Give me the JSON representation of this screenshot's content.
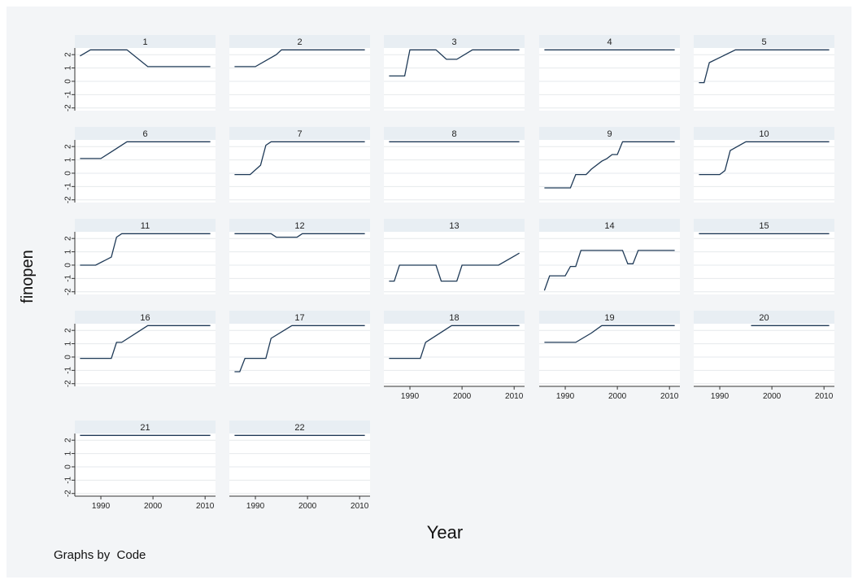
{
  "chart_data": {
    "type": "line",
    "layout": "small-multiples",
    "xlabel": "Year",
    "ylabel": "finopen",
    "note": "Graphs by  Code",
    "xlim": [
      1985,
      2012
    ],
    "ylim": [
      -2.2,
      2.5
    ],
    "xticks": [
      1990,
      2000,
      2010
    ],
    "yticks": [
      -2,
      -1,
      0,
      1,
      2
    ],
    "grid": true,
    "colors": {
      "line": "#1f3a57",
      "header": "#e8eef3",
      "outer_bg": "#f3f5f7",
      "grid": "#e6e9ec"
    },
    "panels": [
      {
        "label": "1",
        "x": [
          1986,
          1988,
          1995,
          1999,
          2011
        ],
        "y": [
          1.9,
          2.36,
          2.36,
          1.1,
          1.1
        ]
      },
      {
        "label": "2",
        "x": [
          1986,
          1990,
          1994,
          1995,
          2011
        ],
        "y": [
          1.1,
          1.1,
          2.0,
          2.36,
          2.36
        ]
      },
      {
        "label": "3",
        "x": [
          1986,
          1989,
          1990,
          1995,
          1997,
          1999,
          2002,
          2011
        ],
        "y": [
          0.4,
          0.4,
          2.36,
          2.36,
          1.65,
          1.65,
          2.36,
          2.36
        ]
      },
      {
        "label": "4",
        "x": [
          1986,
          2011
        ],
        "y": [
          2.36,
          2.36
        ]
      },
      {
        "label": "5",
        "x": [
          1986,
          1987,
          1988,
          1993,
          2011
        ],
        "y": [
          -0.1,
          -0.1,
          1.4,
          2.36,
          2.36
        ]
      },
      {
        "label": "6",
        "x": [
          1986,
          1990,
          1992,
          1995,
          2011
        ],
        "y": [
          1.1,
          1.1,
          1.6,
          2.36,
          2.36
        ]
      },
      {
        "label": "7",
        "x": [
          1986,
          1989,
          1991,
          1992,
          1993,
          2011
        ],
        "y": [
          -0.1,
          -0.1,
          0.6,
          2.1,
          2.36,
          2.36
        ]
      },
      {
        "label": "8",
        "x": [
          1986,
          2011
        ],
        "y": [
          2.36,
          2.36
        ]
      },
      {
        "label": "9",
        "x": [
          1986,
          1991,
          1992,
          1994,
          1995,
          1997,
          1998,
          1999,
          2000,
          2001,
          2011
        ],
        "y": [
          -1.1,
          -1.1,
          -0.1,
          -0.1,
          0.3,
          0.9,
          1.1,
          1.4,
          1.4,
          2.36,
          2.36
        ]
      },
      {
        "label": "10",
        "x": [
          1986,
          1990,
          1991,
          1992,
          1995,
          2011
        ],
        "y": [
          -0.1,
          -0.1,
          0.2,
          1.7,
          2.36,
          2.36
        ]
      },
      {
        "label": "11",
        "x": [
          1986,
          1989,
          1992,
          1993,
          1994,
          2011
        ],
        "y": [
          0,
          0,
          0.6,
          2.1,
          2.36,
          2.36
        ]
      },
      {
        "label": "12",
        "x": [
          1986,
          1993,
          1994,
          1998,
          1999,
          2011
        ],
        "y": [
          2.36,
          2.36,
          2.1,
          2.1,
          2.36,
          2.36
        ]
      },
      {
        "label": "13",
        "x": [
          1986,
          1987,
          1988,
          1995,
          1996,
          1999,
          2000,
          2007,
          2011
        ],
        "y": [
          -1.2,
          -1.2,
          0,
          0,
          -1.2,
          -1.2,
          0,
          0,
          0.9
        ]
      },
      {
        "label": "14",
        "x": [
          1986,
          1987,
          1988,
          1990,
          1991,
          1992,
          1993,
          2001,
          2002,
          2003,
          2004,
          2011
        ],
        "y": [
          -1.9,
          -0.8,
          -0.8,
          -0.8,
          -0.1,
          -0.1,
          1.1,
          1.1,
          0.1,
          0.1,
          1.1,
          1.1
        ]
      },
      {
        "label": "15",
        "x": [
          1986,
          2011
        ],
        "y": [
          2.36,
          2.36
        ]
      },
      {
        "label": "16",
        "x": [
          1986,
          1992,
          1993,
          1994,
          1999,
          2011
        ],
        "y": [
          -0.1,
          -0.1,
          1.1,
          1.1,
          2.36,
          2.36
        ]
      },
      {
        "label": "17",
        "x": [
          1986,
          1987,
          1988,
          1992,
          1993,
          1997,
          2011
        ],
        "y": [
          -1.1,
          -1.1,
          -0.1,
          -0.1,
          1.4,
          2.36,
          2.36
        ]
      },
      {
        "label": "18",
        "x": [
          1986,
          1992,
          1993,
          1998,
          2011
        ],
        "y": [
          -0.1,
          -0.1,
          1.1,
          2.36,
          2.36
        ]
      },
      {
        "label": "19",
        "x": [
          1986,
          1992,
          1995,
          1997,
          2011
        ],
        "y": [
          1.1,
          1.1,
          1.8,
          2.36,
          2.36
        ]
      },
      {
        "label": "20",
        "x": [
          1996,
          2011
        ],
        "y": [
          2.36,
          2.36
        ]
      },
      {
        "label": "21",
        "x": [
          1986,
          2011
        ],
        "y": [
          2.36,
          2.36
        ]
      },
      {
        "label": "22",
        "x": [
          1986,
          2011
        ],
        "y": [
          2.36,
          2.36
        ]
      }
    ]
  }
}
